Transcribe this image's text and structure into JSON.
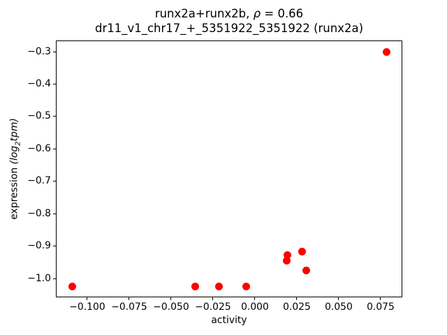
{
  "chart_data": {
    "type": "scatter",
    "title": {
      "line1_prefix": "runx2a+runx2b, ",
      "line1_rho": "ρ",
      "line1_suffix": " = 0.66",
      "line2": "dr11_v1_chr17_+_5351922_5351922 (runx2a)"
    },
    "xlabel": "activity",
    "ylabel": {
      "prefix": "expression ",
      "math_open": "(log",
      "math_sub": "2",
      "math_rest": "tpm)"
    },
    "marker_color": "#ff0000",
    "axis_color": "#000000",
    "grid": false,
    "legend": null,
    "xlim": [
      -0.11875,
      0.08792
    ],
    "ylim": [
      -1.058,
      -0.2655
    ],
    "xticks": [
      {
        "value": -0.1,
        "label": "−0.100"
      },
      {
        "value": -0.075,
        "label": "−0.075"
      },
      {
        "value": -0.05,
        "label": "−0.050"
      },
      {
        "value": -0.025,
        "label": "−0.025"
      },
      {
        "value": 0.0,
        "label": "0.000"
      },
      {
        "value": 0.025,
        "label": "0.025"
      },
      {
        "value": 0.05,
        "label": "0.050"
      },
      {
        "value": 0.075,
        "label": "0.075"
      }
    ],
    "yticks": [
      {
        "value": -0.3,
        "label": "−0.3"
      },
      {
        "value": -0.4,
        "label": "−0.4"
      },
      {
        "value": -0.5,
        "label": "−0.5"
      },
      {
        "value": -0.6,
        "label": "−0.6"
      },
      {
        "value": -0.7,
        "label": "−0.7"
      },
      {
        "value": -0.8,
        "label": "−0.8"
      },
      {
        "value": -0.9,
        "label": "−0.9"
      },
      {
        "value": -1.0,
        "label": "−1.0"
      }
    ],
    "points": [
      {
        "x": -0.109,
        "y": -1.025
      },
      {
        "x": -0.0358,
        "y": -1.025
      },
      {
        "x": -0.0215,
        "y": -1.025
      },
      {
        "x": -0.0051,
        "y": -1.025
      },
      {
        "x": 0.019,
        "y": -0.946
      },
      {
        "x": 0.0195,
        "y": -0.927
      },
      {
        "x": 0.028,
        "y": -0.916
      },
      {
        "x": 0.0308,
        "y": -0.976
      },
      {
        "x": 0.0785,
        "y": -0.302
      }
    ]
  }
}
